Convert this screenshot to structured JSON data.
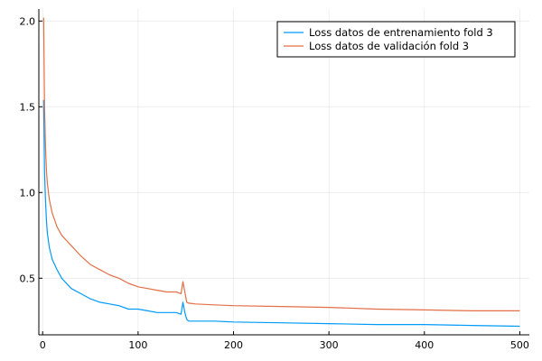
{
  "chart_data": {
    "type": "line",
    "title": "",
    "xlabel": "",
    "ylabel": "",
    "xlim": [
      -4,
      510
    ],
    "ylim": [
      0.17,
      2.07
    ],
    "grid": true,
    "legend_position": "top-right",
    "x_ticks": [
      0,
      100,
      200,
      300,
      400,
      500
    ],
    "y_ticks": [
      0.5,
      1.0,
      1.5,
      2.0
    ],
    "x_tick_labels": [
      "0",
      "100",
      "200",
      "300",
      "400",
      "500"
    ],
    "y_tick_labels": [
      "0.5",
      "1.0",
      "1.5",
      "2.0"
    ],
    "series": [
      {
        "name": "Loss datos de entrenamiento fold 3",
        "color": "#009AF9",
        "x": [
          1,
          2,
          3,
          4,
          5,
          7,
          10,
          15,
          20,
          25,
          30,
          40,
          50,
          60,
          70,
          80,
          90,
          100,
          110,
          120,
          130,
          140,
          145,
          147,
          149,
          151,
          153,
          160,
          180,
          200,
          250,
          300,
          350,
          400,
          450,
          500
        ],
        "values": [
          1.54,
          1.12,
          0.95,
          0.83,
          0.76,
          0.68,
          0.61,
          0.55,
          0.5,
          0.47,
          0.44,
          0.41,
          0.38,
          0.36,
          0.35,
          0.34,
          0.32,
          0.32,
          0.31,
          0.3,
          0.3,
          0.3,
          0.29,
          0.36,
          0.3,
          0.26,
          0.25,
          0.25,
          0.25,
          0.245,
          0.24,
          0.235,
          0.23,
          0.23,
          0.225,
          0.22
        ]
      },
      {
        "name": "Loss datos de validación fold 3",
        "color": "#E26F46",
        "x": [
          1,
          2,
          3,
          4,
          5,
          7,
          10,
          15,
          20,
          25,
          30,
          40,
          50,
          60,
          70,
          80,
          90,
          100,
          110,
          120,
          130,
          140,
          145,
          147,
          149,
          151,
          153,
          160,
          180,
          200,
          250,
          300,
          350,
          400,
          450,
          500
        ],
        "values": [
          2.02,
          1.5,
          1.26,
          1.12,
          1.05,
          0.96,
          0.88,
          0.8,
          0.75,
          0.72,
          0.69,
          0.63,
          0.58,
          0.55,
          0.52,
          0.5,
          0.47,
          0.45,
          0.44,
          0.43,
          0.42,
          0.42,
          0.41,
          0.48,
          0.42,
          0.36,
          0.355,
          0.35,
          0.345,
          0.34,
          0.335,
          0.33,
          0.32,
          0.315,
          0.31,
          0.31
        ]
      }
    ]
  }
}
